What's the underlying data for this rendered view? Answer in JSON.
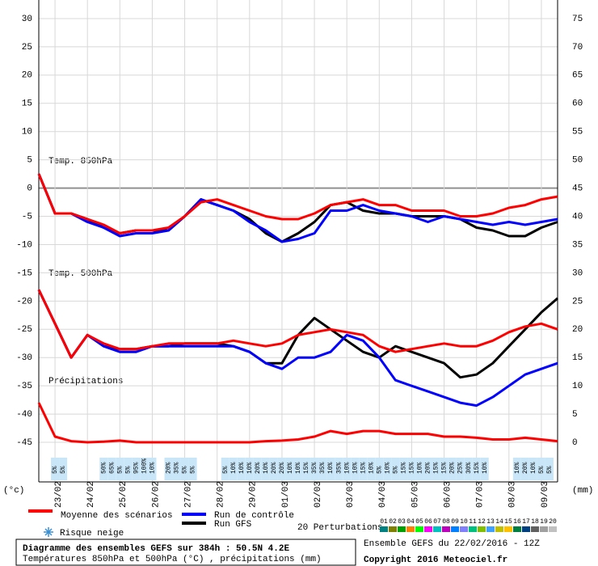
{
  "chart_data": {
    "type": "line",
    "title": "Diagramme des ensembles GEFS sur 384h : 50.5N 4.2E",
    "subtitle": "Températures 850hPa et 500hPa (°C) , précipitations (mm)",
    "run_label": "Ensemble GEFS du 22/02/2016 - 12Z",
    "copyright": "Copyright 2016 Meteociel.fr",
    "y_unit": "(°c)",
    "y2_unit": "(mm)",
    "panel_labels": [
      "Temp. 850hPa",
      "Temp. 500hPa",
      "Précipitations"
    ],
    "xlim": [
      0,
      384
    ],
    "xticks": [
      {
        "value": 12,
        "label": "23/02"
      },
      {
        "value": 36,
        "label": "24/02"
      },
      {
        "value": 60,
        "label": "25/02"
      },
      {
        "value": 84,
        "label": "26/02"
      },
      {
        "value": 108,
        "label": "27/02"
      },
      {
        "value": 132,
        "label": "28/02"
      },
      {
        "value": 156,
        "label": "29/02"
      },
      {
        "value": 180,
        "label": "01/03"
      },
      {
        "value": 204,
        "label": "02/03"
      },
      {
        "value": 228,
        "label": "03/03"
      },
      {
        "value": 252,
        "label": "04/03"
      },
      {
        "value": 276,
        "label": "05/03"
      },
      {
        "value": 300,
        "label": "06/03"
      },
      {
        "value": 324,
        "label": "07/03"
      },
      {
        "value": 348,
        "label": "08/03"
      },
      {
        "value": 372,
        "label": "09/03"
      }
    ],
    "ylim": [
      -48,
      33
    ],
    "yticks": [
      30,
      25,
      20,
      15,
      10,
      5,
      0,
      -5,
      -10,
      -15,
      -20,
      -25,
      -30,
      -35,
      -40,
      -45
    ],
    "y2lim": [
      -3,
      78
    ],
    "y2ticks": [
      75,
      70,
      65,
      60,
      55,
      50,
      45,
      40,
      35,
      30,
      25,
      20,
      15,
      10,
      5,
      0
    ],
    "grid": true,
    "x": [
      0,
      12,
      24,
      36,
      48,
      60,
      72,
      84,
      96,
      108,
      120,
      132,
      144,
      156,
      168,
      180,
      192,
      204,
      216,
      228,
      240,
      252,
      264,
      276,
      288,
      300,
      312,
      324,
      336,
      348,
      360,
      372,
      384
    ],
    "series": [
      {
        "name": "Moyenne des scénarios",
        "color": "#ff0000",
        "t850": [
          2.5,
          -4.5,
          -4.5,
          -5.5,
          -6.5,
          -8,
          -7.5,
          -7.5,
          -7,
          -5,
          -2.5,
          -2,
          -3,
          -4,
          -5,
          -5.5,
          -5.5,
          -4.5,
          -3,
          -2.5,
          -2,
          -3,
          -3,
          -4,
          -4,
          -4,
          -5,
          -5,
          -4.5,
          -3.5,
          -3,
          -2,
          -1.5
        ],
        "t500": [
          -18,
          -24,
          -30,
          -26,
          -27.5,
          -28.5,
          -28.5,
          -28,
          -27.5,
          -27.5,
          -27.5,
          -27.5,
          -27,
          -27.5,
          -28,
          -27.5,
          -26,
          -25.5,
          -25,
          -25.5,
          -26,
          -28,
          -29,
          -28.5,
          -28,
          -27.5,
          -28,
          -28,
          -27,
          -25.5,
          -24.5,
          -24,
          -25
        ],
        "precip": [
          7,
          1,
          0.2,
          0,
          0.1,
          0.3,
          0,
          0,
          0,
          0,
          0,
          0,
          0,
          0,
          0.2,
          0.3,
          0.5,
          1,
          2,
          1.5,
          2,
          2,
          1.5,
          1.5,
          1.5,
          1,
          1,
          0.8,
          0.5,
          0.5,
          0.8,
          0.5,
          0.2
        ]
      },
      {
        "name": "Run de contrôle",
        "color": "#0000ff",
        "t850": [
          2.5,
          -4.5,
          -4.5,
          -6,
          -7,
          -8.5,
          -8,
          -8,
          -7.5,
          -5,
          -2,
          -3,
          -4,
          -6,
          -7.5,
          -9.5,
          -9,
          -8,
          -4,
          -4,
          -3,
          -4,
          -4.5,
          -5,
          -6,
          -5,
          -5.5,
          -6,
          -6.5,
          -6,
          -6.5,
          -6,
          -5.5
        ],
        "t500": [
          -18,
          -24,
          -30,
          -26,
          -28,
          -29,
          -29,
          -28,
          -28,
          -28,
          -28,
          -28,
          -28,
          -29,
          -31,
          -32,
          -30,
          -30,
          -29,
          -26,
          -27,
          -30,
          -34,
          -35,
          -36,
          -37,
          -38,
          -38.5,
          -37,
          -35,
          -33,
          -32,
          -31
        ]
      },
      {
        "name": "Run GFS",
        "color": "#000000",
        "t850": [
          2.5,
          -4.5,
          -4.5,
          -5.5,
          -7,
          -8,
          -7.5,
          -7.5,
          -7.5,
          -5,
          -2,
          -3,
          -4,
          -5.5,
          -8,
          -9.5,
          -8,
          -6,
          -3,
          -2.5,
          -4,
          -4.5,
          -4.5,
          -5,
          -5,
          -5,
          -5.5,
          -7,
          -7.5,
          -8.5,
          -8.5,
          -7,
          -6
        ],
        "t500": [
          -18,
          -24,
          -30,
          -26,
          -28,
          -28.5,
          -28.5,
          -28,
          -28,
          -27.5,
          -27.5,
          -27.5,
          -28,
          -29,
          -31,
          -31,
          -26,
          -23,
          -25,
          -27,
          -29,
          -30,
          -28,
          -29,
          -30,
          -31,
          -33.5,
          -33,
          -31,
          -28,
          -25,
          -22,
          -19.5
        ]
      }
    ],
    "snow_risk": {
      "name": "Risque neige",
      "color": "#c8e6f8",
      "x": [
        12,
        18,
        48,
        54,
        60,
        66,
        72,
        78,
        84,
        96,
        102,
        108,
        114,
        138,
        144,
        150,
        156,
        162,
        168,
        174,
        180,
        186,
        192,
        198,
        204,
        210,
        216,
        222,
        228,
        234,
        240,
        246,
        252,
        258,
        264,
        270,
        276,
        282,
        288,
        294,
        300,
        306,
        312,
        318,
        324,
        330,
        354,
        360,
        366,
        372,
        378
      ],
      "values": [
        5,
        5,
        50,
        65,
        5,
        5,
        95,
        100,
        10,
        20,
        35,
        5,
        5,
        5,
        10,
        10,
        10,
        20,
        10,
        20,
        20,
        10,
        10,
        15,
        35,
        35,
        10,
        35,
        10,
        10,
        15,
        10,
        5,
        10,
        5,
        15,
        15,
        10,
        20,
        15,
        15,
        20,
        25,
        30,
        15,
        10,
        10,
        20,
        10,
        5,
        5
      ],
      "value_labels": [
        "5%",
        "5%",
        "50%",
        "65%",
        "5%",
        "5%",
        "95%",
        "100%",
        "10%",
        "20%",
        "35%",
        "5%",
        "5%",
        "5%",
        "10%",
        "10%",
        "10%",
        "20%",
        "10%",
        "20%",
        "20%",
        "10%",
        "10%",
        "15%",
        "35%",
        "35%",
        "10%",
        "35%",
        "10%",
        "10%",
        "15%",
        "10%",
        "5%",
        "10%",
        "5%",
        "15%",
        "15%",
        "10%",
        "20%",
        "15%",
        "15%",
        "20%",
        "25%",
        "30%",
        "15%",
        "10%",
        "10%",
        "20%",
        "10%",
        "5%",
        "5%"
      ]
    },
    "perturbations": {
      "label": "20 Perturbations",
      "names": [
        "01",
        "02",
        "03",
        "04",
        "05",
        "06",
        "07",
        "08",
        "09",
        "10",
        "11",
        "12",
        "13",
        "14",
        "15",
        "16",
        "17",
        "18",
        "19",
        "20"
      ],
      "colors": [
        "#008080",
        "#808000",
        "#00a000",
        "#ff8000",
        "#00ff00",
        "#ff00ff",
        "#00c0c0",
        "#c000c0",
        "#0080ff",
        "#8080ff",
        "#00c080",
        "#80c000",
        "#40a0ff",
        "#c0c000",
        "#ffc000",
        "#008040",
        "#004080",
        "#606060",
        "#a0a0a0",
        "#c0c0c0"
      ]
    }
  }
}
